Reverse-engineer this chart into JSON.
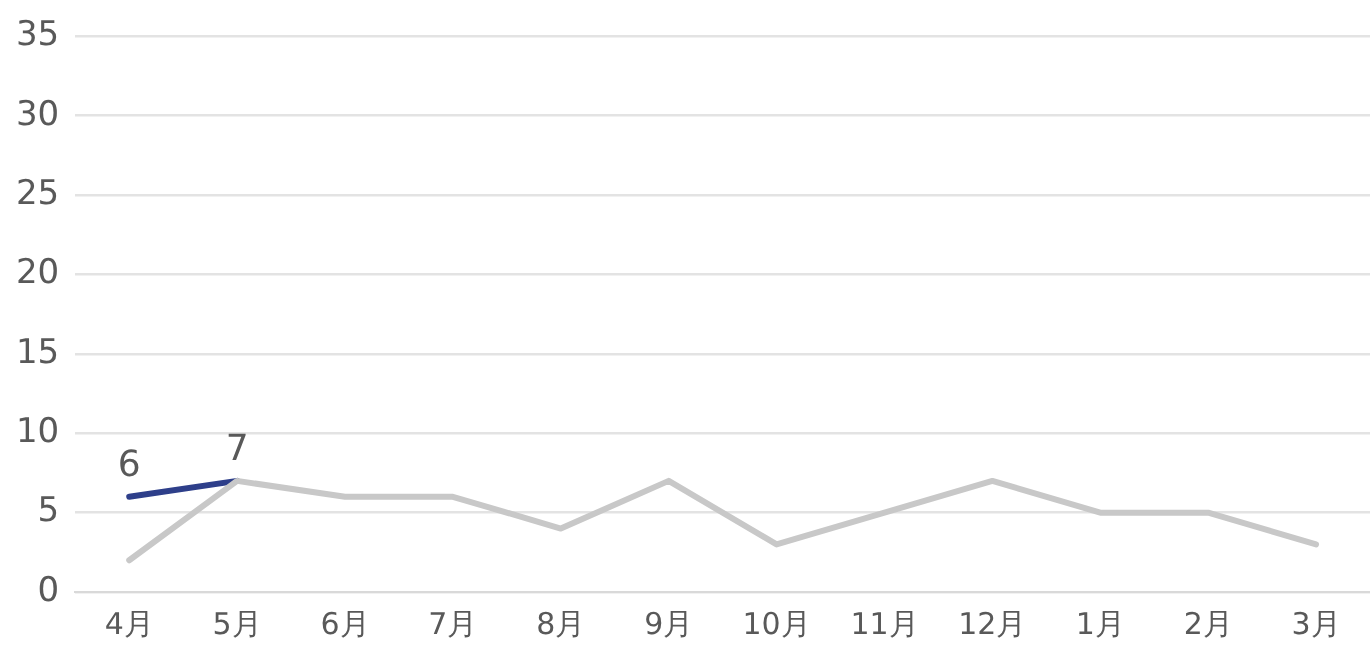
{
  "chart_data": {
    "type": "line",
    "categories": [
      "4月",
      "5月",
      "6月",
      "7月",
      "8月",
      "9月",
      "10月",
      "11月",
      "12月",
      "1月",
      "2月",
      "3月"
    ],
    "series": [
      {
        "color": "#c8c8c8",
        "values": [
          2,
          7,
          6,
          6,
          4,
          7,
          3,
          5,
          7,
          5,
          5,
          3
        ]
      },
      {
        "color": "#2e3f8a",
        "values": [
          6,
          7,
          null,
          null,
          null,
          null,
          null,
          null,
          null,
          null,
          null,
          null
        ],
        "value_labels": [
          "6",
          "7",
          null,
          null,
          null,
          null,
          null,
          null,
          null,
          null,
          null,
          null
        ]
      }
    ],
    "ylim": [
      0,
      35
    ],
    "yticks": [
      0,
      5,
      10,
      15,
      20,
      25,
      30,
      35
    ],
    "grid": "y",
    "legend": false,
    "marker": "none",
    "line_style": "solid"
  }
}
